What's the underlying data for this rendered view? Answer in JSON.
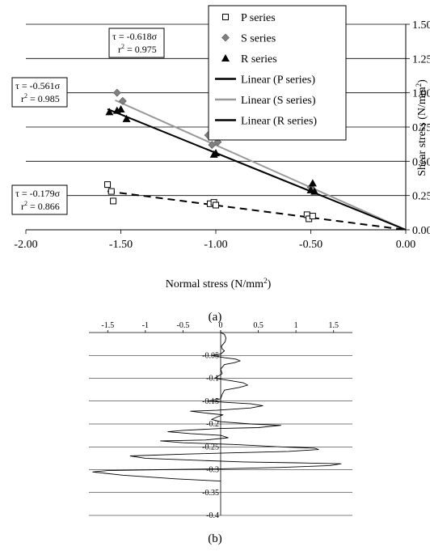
{
  "figure_labels": {
    "a": "(a)",
    "b": "(b)"
  },
  "chart_data": [
    {
      "id": "a",
      "type": "scatter",
      "xlabel": "Normal stress (N/mm²)",
      "ylabel": "Shear stress (N/mm²)",
      "xlim": [
        -2.0,
        0.0
      ],
      "ylim": [
        0.0,
        1.5
      ],
      "x_ticks": [
        "-2.00",
        "-1.50",
        "-1.00",
        "-0.50",
        "0.00"
      ],
      "y_ticks": [
        "0.00",
        "0.25",
        "0.50",
        "0.75",
        "1.00",
        "1.25",
        "1.50"
      ],
      "grid": "horizontal",
      "legend_position": "top-right",
      "series": [
        {
          "name": "P series",
          "marker": "open-square",
          "color": "#000000",
          "points": [
            [
              -1.57,
              0.33
            ],
            [
              -1.55,
              0.28
            ],
            [
              -1.54,
              0.21
            ],
            [
              -1.03,
              0.19
            ],
            [
              -1.01,
              0.2
            ],
            [
              -1.0,
              0.18
            ],
            [
              -0.52,
              0.11
            ],
            [
              -0.51,
              0.08
            ],
            [
              -0.49,
              0.1
            ]
          ]
        },
        {
          "name": "S series",
          "marker": "diamond",
          "color": "#808080",
          "points": [
            [
              -1.52,
              1.0
            ],
            [
              -1.49,
              0.94
            ],
            [
              -1.04,
              0.69
            ],
            [
              -1.02,
              0.62
            ],
            [
              -0.99,
              0.64
            ],
            [
              -0.5,
              0.31
            ],
            [
              -0.49,
              0.29
            ]
          ]
        },
        {
          "name": "R series",
          "marker": "triangle",
          "color": "#000000",
          "points": [
            [
              -1.56,
              0.86
            ],
            [
              -1.52,
              0.87
            ],
            [
              -1.5,
              0.88
            ],
            [
              -1.47,
              0.81
            ],
            [
              -1.01,
              0.55
            ],
            [
              -1.0,
              0.56
            ],
            [
              -0.5,
              0.29
            ],
            [
              -0.49,
              0.34
            ],
            [
              -0.48,
              0.28
            ]
          ]
        },
        {
          "name": "Linear (P series)",
          "line": "dashed",
          "color": "#000000",
          "x_range": [
            -1.57,
            0.0
          ],
          "slope": -0.179
        },
        {
          "name": "Linear (S series)",
          "line": "solid",
          "color": "#999999",
          "x_range": [
            -1.53,
            0.0
          ],
          "slope": -0.618
        },
        {
          "name": "Linear (R series)",
          "line": "solid",
          "color": "#000000",
          "x_range": [
            -1.57,
            0.0
          ],
          "slope": -0.561
        }
      ],
      "annotations": [
        {
          "eq": "τ = -0.618σ",
          "r2_prefix": "r",
          "r2_value": "= 0.975"
        },
        {
          "eq": "τ = -0.561σ",
          "r2_prefix": "r",
          "r2_value": "= 0.985"
        },
        {
          "eq": "τ = -0.179σ",
          "r2_prefix": "r",
          "r2_value": "= 0.866"
        }
      ]
    },
    {
      "id": "b",
      "type": "line",
      "xlim": [
        -1.75,
        1.75
      ],
      "ylim": [
        -0.4,
        0.0
      ],
      "x_ticks": [
        "-1.5",
        "-1",
        "-0.5",
        "0",
        "0.5",
        "1",
        "1.5"
      ],
      "y_ticks": [
        "-0.05",
        "-0.1",
        "-0.15",
        "-0.2",
        "-0.25",
        "-0.3",
        "-0.35",
        "-0.4"
      ],
      "grid": "horizontal",
      "series": [
        {
          "style": "solid",
          "color": "#000000",
          "points": [
            [
              0,
              0
            ],
            [
              0.05,
              -0.004
            ],
            [
              0.07,
              -0.012
            ],
            [
              0.06,
              -0.02
            ],
            [
              0.01,
              -0.03
            ],
            [
              0.02,
              -0.036
            ],
            [
              0.05,
              -0.04
            ],
            [
              0,
              -0.047
            ],
            [
              -0.12,
              -0.05
            ],
            [
              0.05,
              -0.055
            ],
            [
              0.2,
              -0.058
            ],
            [
              0.26,
              -0.062
            ],
            [
              0.18,
              -0.066
            ],
            [
              0.05,
              -0.07
            ],
            [
              0,
              -0.08
            ],
            [
              0.02,
              -0.09
            ],
            [
              -0.08,
              -0.1
            ],
            [
              0.12,
              -0.105
            ],
            [
              0.3,
              -0.11
            ],
            [
              0.36,
              -0.115
            ],
            [
              0.25,
              -0.12
            ],
            [
              0.05,
              -0.126
            ],
            [
              0.02,
              -0.135
            ],
            [
              0,
              -0.145
            ],
            [
              -0.18,
              -0.15
            ],
            [
              0.1,
              -0.153
            ],
            [
              0.4,
              -0.156
            ],
            [
              0.56,
              -0.16
            ],
            [
              0.4,
              -0.165
            ],
            [
              -0.05,
              -0.17
            ],
            [
              -0.4,
              -0.172
            ],
            [
              -0.15,
              -0.177
            ],
            [
              0.03,
              -0.18
            ],
            [
              -0.05,
              -0.185
            ],
            [
              -0.12,
              -0.19
            ],
            [
              0.0,
              -0.195
            ],
            [
              0.4,
              -0.2
            ],
            [
              0.8,
              -0.203
            ],
            [
              0.5,
              -0.208
            ],
            [
              0.0,
              -0.21
            ],
            [
              -0.5,
              -0.214
            ],
            [
              -0.7,
              -0.217
            ],
            [
              -0.4,
              -0.221
            ],
            [
              0.0,
              -0.225
            ],
            [
              0.1,
              -0.23
            ],
            [
              -0.2,
              -0.235
            ],
            [
              -0.8,
              -0.237
            ],
            [
              -0.5,
              -0.241
            ],
            [
              0.2,
              -0.245
            ],
            [
              0.8,
              -0.25
            ],
            [
              1.25,
              -0.253
            ],
            [
              1.3,
              -0.256
            ],
            [
              0.9,
              -0.26
            ],
            [
              0.2,
              -0.263
            ],
            [
              -0.5,
              -0.266
            ],
            [
              -1.2,
              -0.27
            ],
            [
              -1.0,
              -0.275
            ],
            [
              -0.4,
              -0.279
            ],
            [
              0.3,
              -0.283
            ],
            [
              1.0,
              -0.285
            ],
            [
              1.6,
              -0.287
            ],
            [
              1.45,
              -0.291
            ],
            [
              0.8,
              -0.295
            ],
            [
              0.0,
              -0.298
            ],
            [
              -0.8,
              -0.3
            ],
            [
              -1.5,
              -0.302
            ],
            [
              -1.7,
              -0.305
            ],
            [
              -1.3,
              -0.312
            ],
            [
              -0.6,
              -0.32
            ],
            [
              0.0,
              -0.325
            ]
          ]
        }
      ]
    }
  ]
}
